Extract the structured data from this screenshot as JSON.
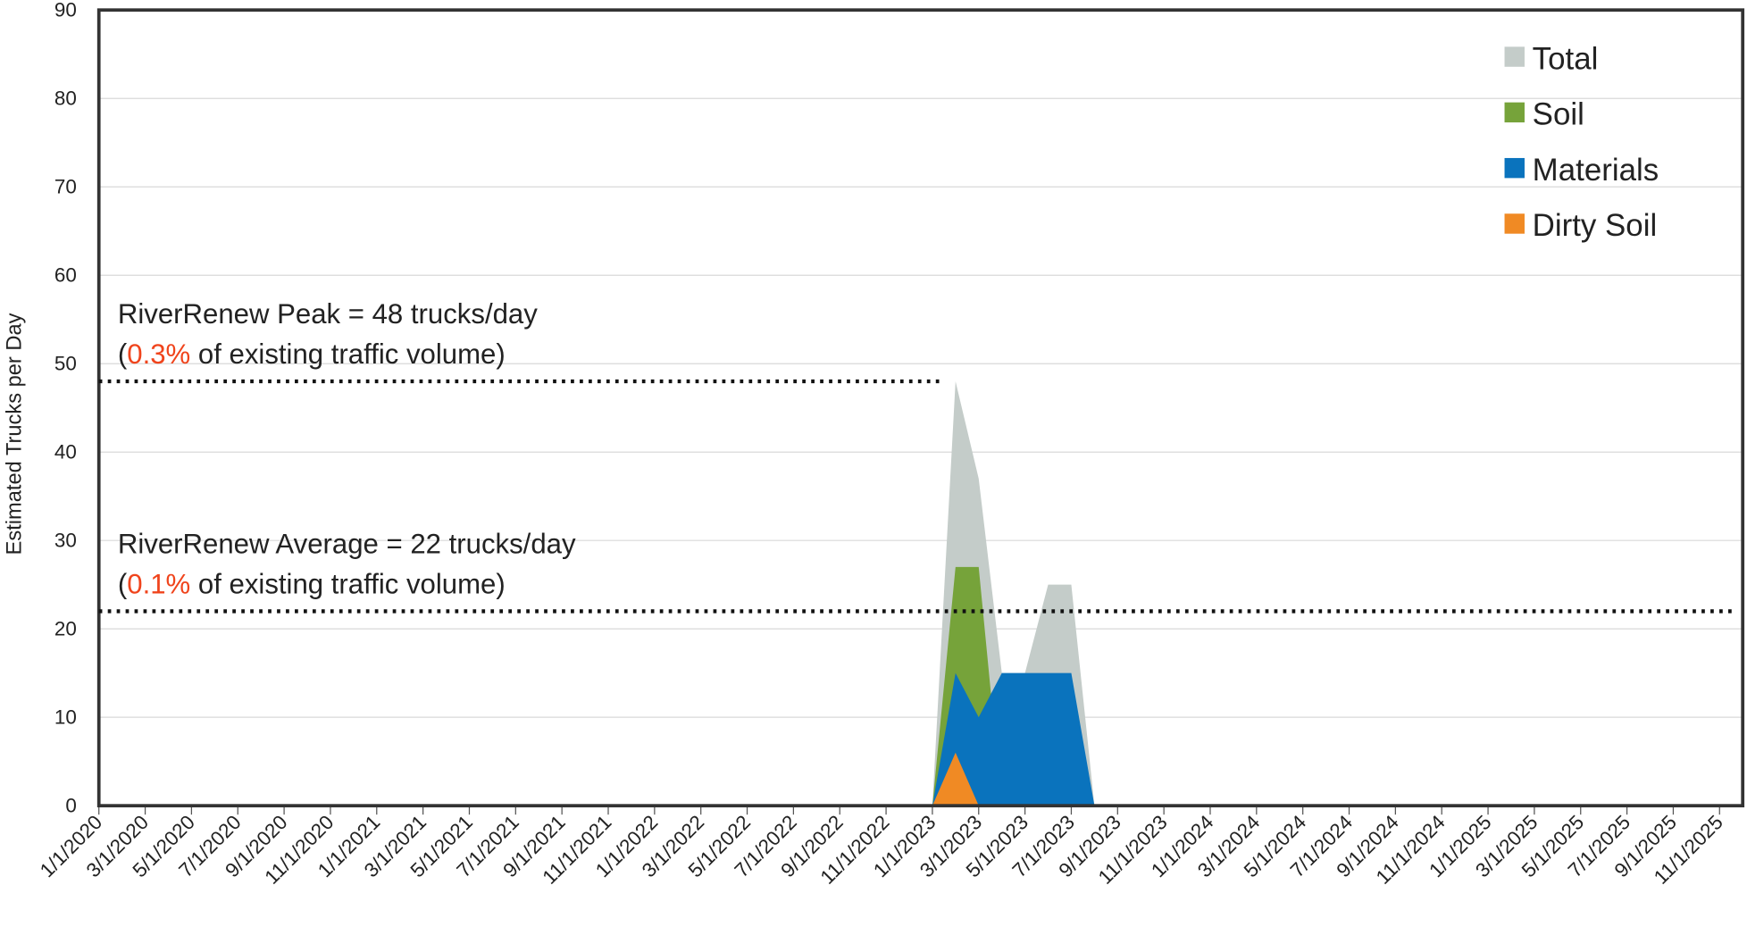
{
  "chart_data": {
    "type": "area",
    "y_label": "Estimated Trucks per Day",
    "x": [
      "1/1/2020",
      null,
      "3/1/2020",
      null,
      "5/1/2020",
      null,
      "7/1/2020",
      null,
      "9/1/2020",
      null,
      "11/1/2020",
      null,
      "1/1/2021",
      null,
      "3/1/2021",
      null,
      "5/1/2021",
      null,
      "7/1/2021",
      null,
      "9/1/2021",
      null,
      "11/1/2021",
      null,
      "1/1/2022",
      null,
      "3/1/2022",
      null,
      "5/1/2022",
      null,
      "7/1/2022",
      null,
      "9/1/2022",
      null,
      "11/1/2022",
      null,
      "1/1/2023",
      null,
      "3/1/2023",
      null,
      "5/1/2023",
      null,
      "7/1/2023",
      null,
      "9/1/2023",
      null,
      "11/1/2023",
      null,
      "1/1/2024",
      null,
      "3/1/2024",
      null,
      "5/1/2024",
      null,
      "7/1/2024",
      null,
      "9/1/2024",
      null,
      "11/1/2024",
      null,
      "1/1/2025",
      null,
      "3/1/2025",
      null,
      "5/1/2025",
      null,
      "7/1/2025",
      null,
      "9/1/2025",
      null,
      "11/1/2025",
      null
    ],
    "series": [
      {
        "name": "Total",
        "color": "#c4ccc9",
        "values": [
          0,
          0,
          0,
          0,
          0,
          0,
          0,
          0,
          0,
          0,
          0,
          0,
          0,
          0,
          0,
          0,
          0,
          0,
          0,
          0,
          0,
          0,
          0,
          0,
          0,
          0,
          0,
          0,
          0,
          0,
          0,
          0,
          0,
          0,
          0,
          0,
          0,
          48,
          37,
          15,
          15,
          25,
          25,
          0,
          0,
          0,
          0,
          0,
          0,
          0,
          0,
          0,
          0,
          0,
          0,
          0,
          0,
          0,
          0,
          0,
          0,
          0,
          0,
          0,
          0,
          0,
          0,
          0,
          0,
          0,
          0,
          0
        ]
      },
      {
        "name": "Soil",
        "color": "#76a33a",
        "values": [
          0,
          0,
          0,
          0,
          0,
          0,
          0,
          0,
          0,
          0,
          0,
          0,
          0,
          0,
          0,
          0,
          0,
          0,
          0,
          0,
          0,
          0,
          0,
          0,
          0,
          0,
          0,
          0,
          0,
          0,
          0,
          0,
          0,
          0,
          0,
          0,
          0,
          27,
          27,
          0,
          0,
          0,
          0,
          0,
          0,
          0,
          0,
          0,
          0,
          0,
          0,
          0,
          0,
          0,
          0,
          0,
          0,
          0,
          0,
          0,
          0,
          0,
          0,
          0,
          0,
          0,
          0,
          0,
          0,
          0,
          0,
          0
        ]
      },
      {
        "name": "Materials",
        "color": "#0a73bd",
        "values": [
          0,
          0,
          0,
          0,
          0,
          0,
          0,
          0,
          0,
          0,
          0,
          0,
          0,
          0,
          0,
          0,
          0,
          0,
          0,
          0,
          0,
          0,
          0,
          0,
          0,
          0,
          0,
          0,
          0,
          0,
          0,
          0,
          0,
          0,
          0,
          0,
          0,
          15,
          10,
          15,
          15,
          15,
          15,
          0,
          0,
          0,
          0,
          0,
          0,
          0,
          0,
          0,
          0,
          0,
          0,
          0,
          0,
          0,
          0,
          0,
          0,
          0,
          0,
          0,
          0,
          0,
          0,
          0,
          0,
          0,
          0,
          0
        ]
      },
      {
        "name": "Dirty Soil",
        "color": "#f08a24",
        "values": [
          0,
          0,
          0,
          0,
          0,
          0,
          0,
          0,
          0,
          0,
          0,
          0,
          0,
          0,
          0,
          0,
          0,
          0,
          0,
          0,
          0,
          0,
          0,
          0,
          0,
          0,
          0,
          0,
          0,
          0,
          0,
          0,
          0,
          0,
          0,
          0,
          0,
          6,
          0,
          0,
          0,
          0,
          0,
          0,
          0,
          0,
          0,
          0,
          0,
          0,
          0,
          0,
          0,
          0,
          0,
          0,
          0,
          0,
          0,
          0,
          0,
          0,
          0,
          0,
          0,
          0,
          0,
          0,
          0,
          0,
          0,
          0
        ]
      }
    ],
    "ylim": [
      0,
      90
    ],
    "yticks": [
      0,
      10,
      20,
      30,
      40,
      50,
      60,
      70,
      80,
      90
    ],
    "grid": true,
    "legend": "top-right",
    "reference_lines": [
      {
        "value": 48,
        "line1": "RiverRenew Peak = 48 trucks/day",
        "open": "(",
        "pct": "0.3%",
        "rest": " of existing traffic volume)",
        "pct_color": "#f0441c",
        "extent": "to-peak"
      },
      {
        "value": 22,
        "line1": "RiverRenew Average = 22 trucks/day",
        "open": "(",
        "pct": "0.1%",
        "rest": " of existing traffic volume)",
        "pct_color": "#f0441c",
        "extent": "full"
      }
    ]
  }
}
